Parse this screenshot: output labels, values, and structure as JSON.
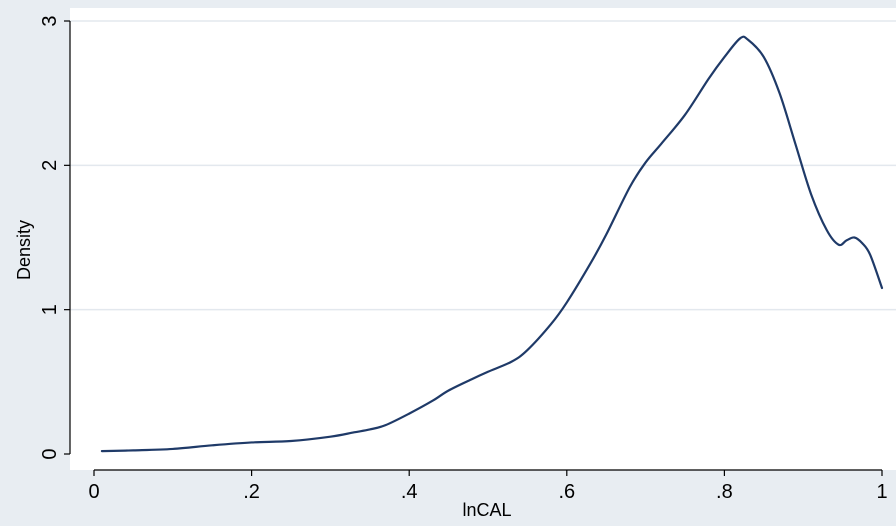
{
  "chart_data": {
    "type": "line",
    "title": "",
    "xlabel": "lnCAL",
    "ylabel": "Density",
    "xlim": [
      0,
      1
    ],
    "ylim": [
      0,
      3
    ],
    "x_ticks": [
      "0",
      ".2",
      ".4",
      ".6",
      ".8",
      "1"
    ],
    "y_ticks": [
      "0",
      "1",
      "2",
      "3"
    ],
    "grid": "horizontal",
    "colors": {
      "background": "#e8edf2",
      "plot_area": "#ffffff",
      "line": "#1f3a68",
      "grid": "#e3e8ee"
    },
    "series": [
      {
        "x": [
          0.01,
          0.05,
          0.1,
          0.15,
          0.2,
          0.25,
          0.3,
          0.33,
          0.35,
          0.37,
          0.4,
          0.43,
          0.45,
          0.48,
          0.5,
          0.53,
          0.55,
          0.58,
          0.6,
          0.63,
          0.65,
          0.68,
          0.7,
          0.72,
          0.75,
          0.78,
          0.8,
          0.82,
          0.83,
          0.85,
          0.87,
          0.89,
          0.91,
          0.93,
          0.945,
          0.955,
          0.965,
          0.975,
          0.985,
          1.0
        ],
        "y": [
          0.02,
          0.025,
          0.035,
          0.06,
          0.08,
          0.09,
          0.12,
          0.15,
          0.17,
          0.2,
          0.28,
          0.37,
          0.44,
          0.52,
          0.57,
          0.64,
          0.72,
          0.9,
          1.05,
          1.32,
          1.52,
          1.85,
          2.02,
          2.15,
          2.35,
          2.6,
          2.75,
          2.88,
          2.87,
          2.75,
          2.5,
          2.15,
          1.8,
          1.55,
          1.45,
          1.48,
          1.5,
          1.46,
          1.38,
          1.15
        ]
      }
    ]
  }
}
